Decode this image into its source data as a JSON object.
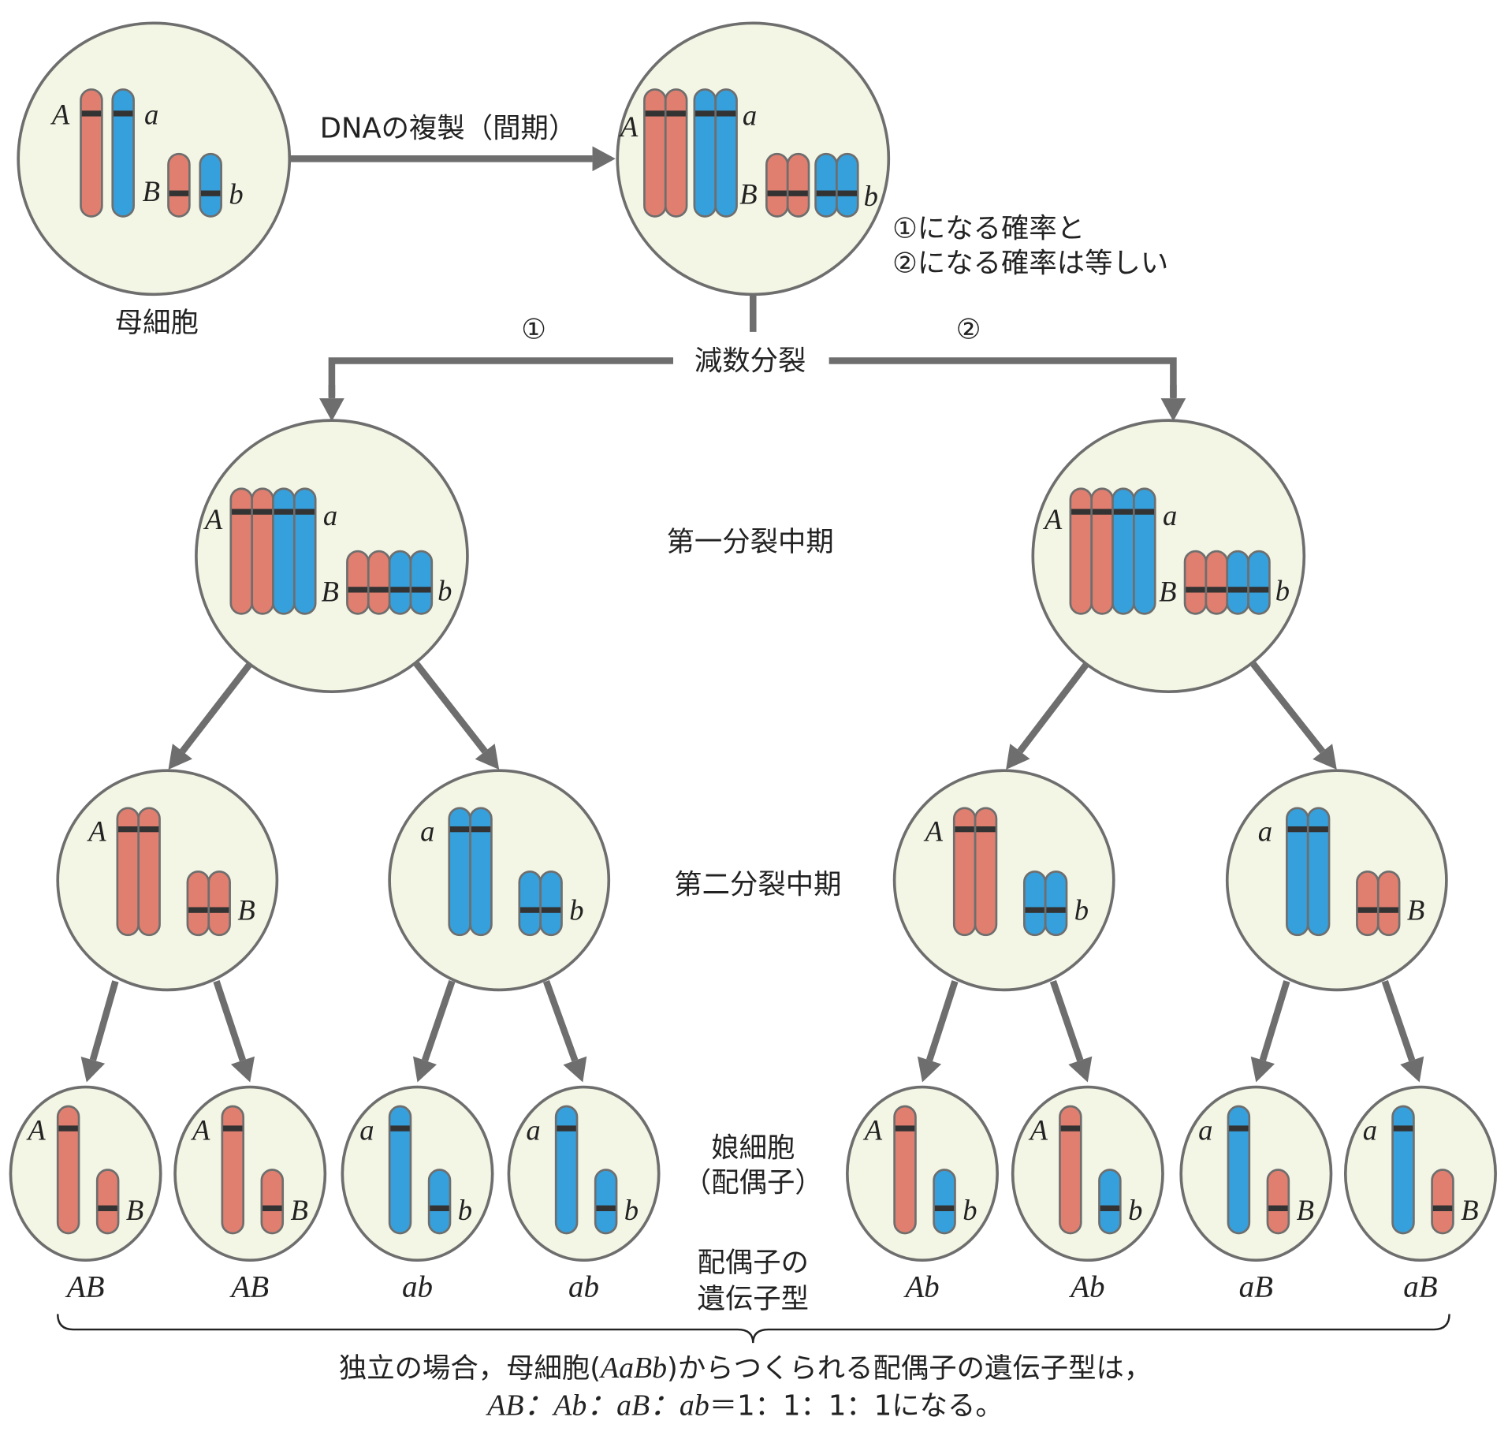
{
  "labels": {
    "mother_cell": "母細胞",
    "dna_replication": "DNAの複製（間期）",
    "note_line1": "①になる確率と",
    "note_line2": "②になる確率は等しい",
    "path1": "①",
    "path2": "②",
    "meiosis": "減数分裂",
    "metaphase1": "第一分裂中期",
    "metaphase2": "第二分裂中期",
    "daughter_cells": "娘細胞",
    "gametes_paren": "（配偶子）",
    "gamete_genotype_line1": "配偶子の",
    "gamete_genotype_line2": "遺伝子型",
    "conclusion_pre": "独立の場合，母細胞(",
    "conclusion_geno": "AaBb",
    "conclusion_post": ")からつくられる配偶子の遺伝子型は，",
    "ratio_genotypes": "AB：Ab：aB：ab",
    "ratio_values": "＝1：1：1：1になる。"
  },
  "colors": {
    "dominant_chromosome": "#e07f6f",
    "recessive_chromosome": "#35a0dc",
    "cell_fill": "#f3f6e4",
    "outline": "#6e6e6e",
    "arrow": "#6e6e6e"
  },
  "cells": {
    "mother": {
      "long_alleles": [
        "A",
        "a"
      ],
      "short_alleles": [
        "B",
        "b"
      ]
    },
    "replicated": {
      "long_alleles": [
        "A",
        "a"
      ],
      "short_alleles": [
        "B",
        "b"
      ]
    },
    "metaphase1_left": {
      "long_alleles": [
        "A",
        "a"
      ],
      "short_alleles": [
        "B",
        "b"
      ]
    },
    "metaphase1_right": {
      "long_alleles": [
        "A",
        "a"
      ],
      "short_alleles": [
        "B",
        "b"
      ]
    },
    "metaphase2": [
      {
        "long": "A",
        "short": "B"
      },
      {
        "long": "a",
        "short": "b"
      },
      {
        "long": "A",
        "short": "b"
      },
      {
        "long": "a",
        "short": "B"
      }
    ],
    "gametes": [
      {
        "long": "A",
        "short": "B",
        "genotype": "AB"
      },
      {
        "long": "A",
        "short": "B",
        "genotype": "AB"
      },
      {
        "long": "a",
        "short": "b",
        "genotype": "ab"
      },
      {
        "long": "a",
        "short": "b",
        "genotype": "ab"
      },
      {
        "long": "A",
        "short": "b",
        "genotype": "Ab"
      },
      {
        "long": "A",
        "short": "b",
        "genotype": "Ab"
      },
      {
        "long": "a",
        "short": "B",
        "genotype": "aB"
      },
      {
        "long": "a",
        "short": "B",
        "genotype": "aB"
      }
    ]
  }
}
